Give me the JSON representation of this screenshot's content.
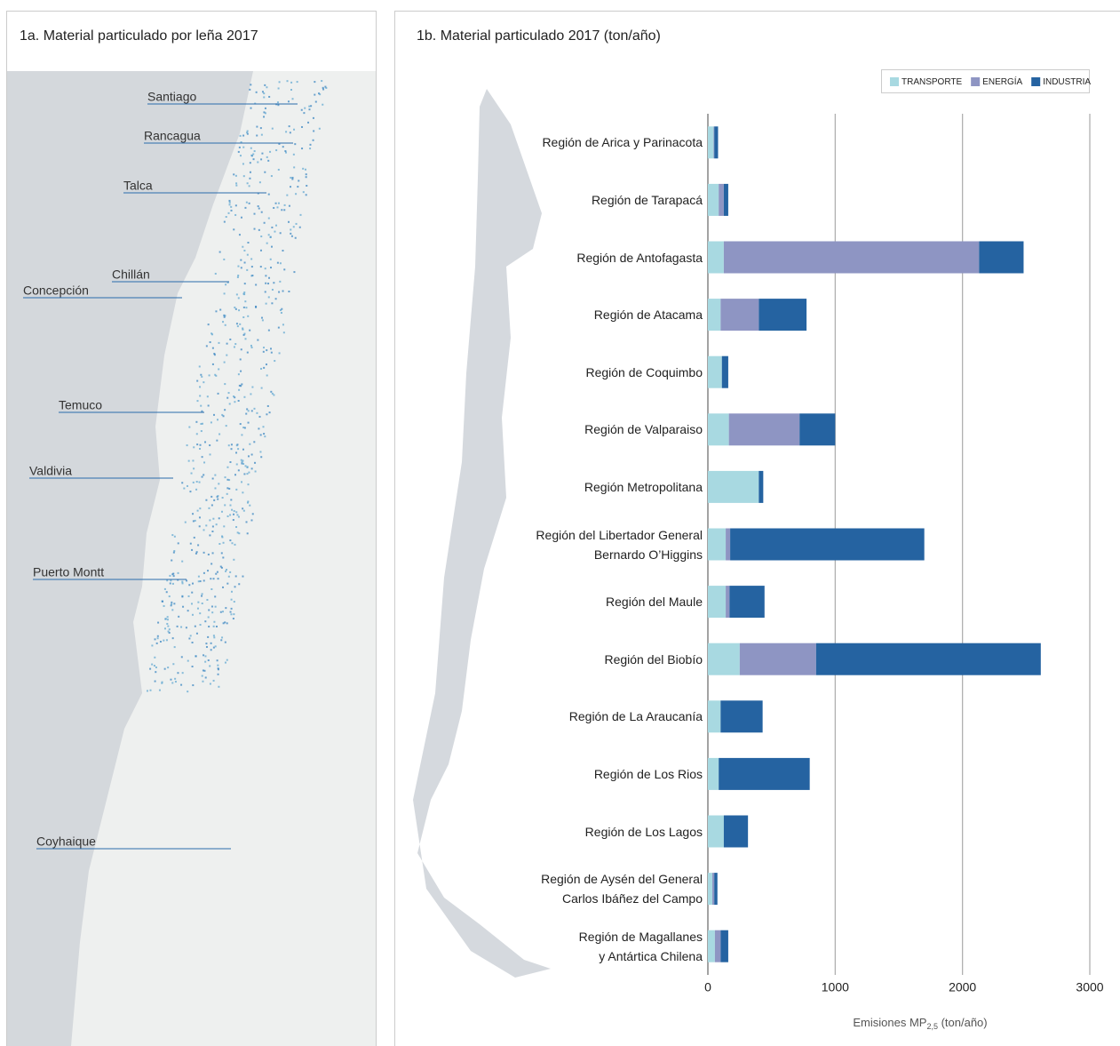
{
  "map": {
    "title": "1a. Material particulado por leña 2017",
    "cities": [
      "Santiago",
      "Rancagua",
      "Talca",
      "Chillán",
      "Concepción",
      "Temuco",
      "Valdivia",
      "Puerto Montt",
      "Coyhaique"
    ]
  },
  "chart_data": {
    "type": "bar",
    "orientation": "horizontal",
    "stacked": true,
    "title": "1b. Material particulado 2017 (ton/año)",
    "categories": [
      "Región de Arica y Parinacota",
      "Región de Tarapacá",
      "Región de Antofagasta",
      "Región de Atacama",
      "Región de Coquimbo",
      "Región de Valparaiso",
      "Región Metropolitana",
      "Región del Libertador General\nBernardo O’Higgins",
      "Región del Maule",
      "Región del Biobío",
      "Región de La Araucanía",
      "Región de Los Rios",
      "Región de Los Lagos",
      "Región de Aysén del General\nCarlos Ibáñez del Campo",
      "Región de Magallanes\ny Antártica Chilena"
    ],
    "series": [
      {
        "name": "TRANSPORTE",
        "color": "#a8d9e1",
        "values": [
          45,
          85,
          125,
          100,
          110,
          165,
          400,
          140,
          140,
          250,
          100,
          85,
          125,
          35,
          55
        ]
      },
      {
        "name": "ENERGÍA",
        "color": "#8e95c3",
        "values": [
          5,
          40,
          2005,
          300,
          0,
          555,
          0,
          35,
          30,
          600,
          0,
          0,
          0,
          15,
          45
        ]
      },
      {
        "name": "INDUSTRIA",
        "color": "#2563a1",
        "values": [
          30,
          35,
          350,
          375,
          50,
          280,
          35,
          1525,
          275,
          1765,
          330,
          715,
          190,
          25,
          60
        ]
      }
    ],
    "xlim": [
      0,
      3000
    ],
    "xticks": [
      0,
      1000,
      2000,
      3000
    ],
    "grid": true,
    "legend": "top-right",
    "xlabel": "Emisiones MP",
    "xlabel_sub": "2,5",
    "xlabel_suffix": " (ton/año)"
  }
}
